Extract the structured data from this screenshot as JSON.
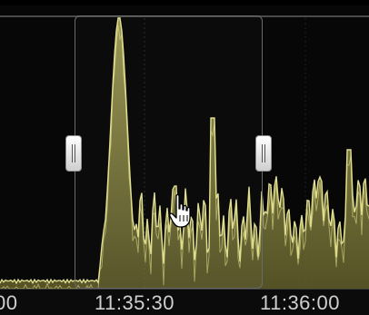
{
  "timeline": {
    "ticks": [
      "00",
      "11:35:30",
      "11:36:00"
    ]
  },
  "colors": {
    "waveform_fill": "#8d8a45",
    "waveform_highlight": "#f2ef9a",
    "background": "#070707"
  },
  "icons": {
    "cursor": "hand-pointer-icon",
    "handle": "grip-icon"
  }
}
